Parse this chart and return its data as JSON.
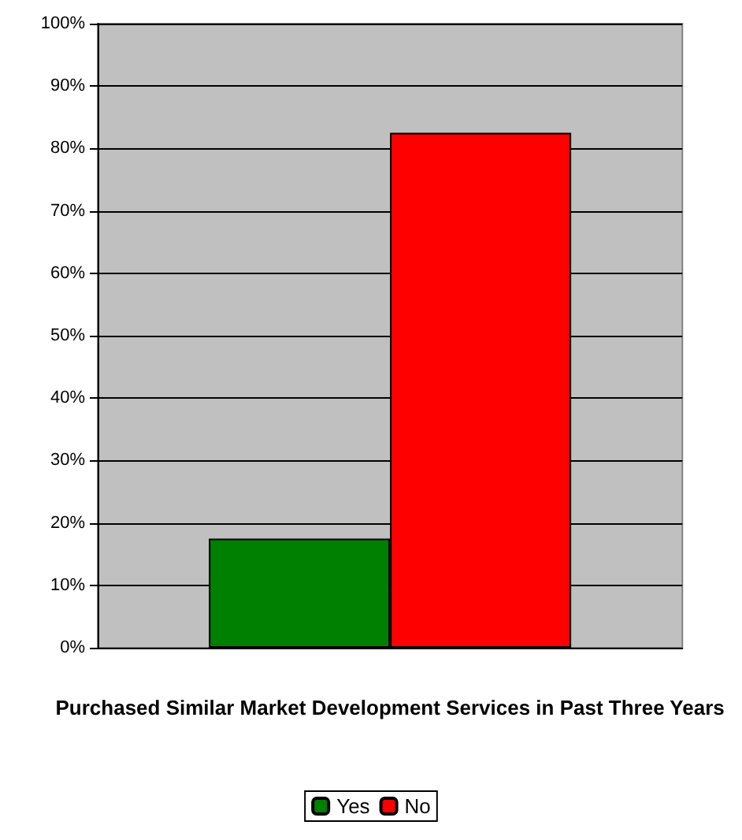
{
  "chart_data": {
    "type": "bar",
    "xlabel": "Purchased Similar Market Development Services in Past Three Years",
    "categories": [
      null
    ],
    "series": [
      {
        "name": "Yes",
        "color": "#008000",
        "values": [
          17.5
        ]
      },
      {
        "name": "No",
        "color": "#ff0000",
        "values": [
          82.5
        ]
      }
    ],
    "ylim": [
      0,
      100
    ],
    "yticks": [
      {
        "value": 0,
        "label": "0%"
      },
      {
        "value": 10,
        "label": "10%"
      },
      {
        "value": 20,
        "label": "20%"
      },
      {
        "value": 30,
        "label": "30%"
      },
      {
        "value": 40,
        "label": "40%"
      },
      {
        "value": 50,
        "label": "50%"
      },
      {
        "value": 60,
        "label": "60%"
      },
      {
        "value": 70,
        "label": "70%"
      },
      {
        "value": 80,
        "label": "80%"
      },
      {
        "value": 90,
        "label": "90%"
      },
      {
        "value": 100,
        "label": "100%"
      }
    ],
    "grid": "y",
    "legend": "bottom"
  }
}
